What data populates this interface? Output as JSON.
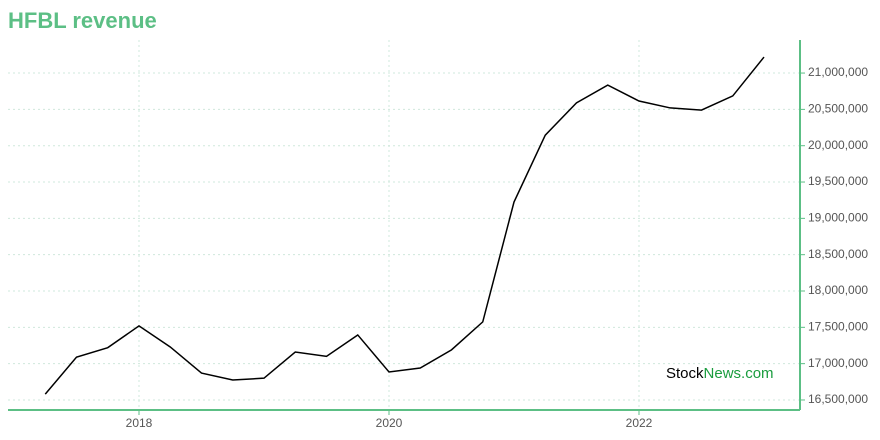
{
  "chart_data": {
    "type": "line",
    "title": "HFBL revenue",
    "x": [
      2017.25,
      2017.5,
      2017.75,
      2018.0,
      2018.25,
      2018.5,
      2018.75,
      2019.0,
      2019.25,
      2019.5,
      2019.75,
      2020.0,
      2020.25,
      2020.5,
      2020.75,
      2021.0,
      2021.25,
      2021.5,
      2021.75,
      2022.0,
      2022.25,
      2022.5,
      2022.75,
      2023.0
    ],
    "series": [
      {
        "name": "Revenue",
        "color": "#000000",
        "values": [
          16580000,
          17090000,
          17220000,
          17520000,
          17230000,
          16870000,
          16775000,
          16800000,
          17160000,
          17100000,
          17395000,
          16885000,
          16940000,
          17190000,
          17575000,
          19225000,
          20145000,
          20590000,
          20835000,
          20615000,
          20520000,
          20490000,
          20685000,
          21220000
        ]
      }
    ],
    "xlim": [
      2016.952,
      2023.288
    ],
    "xticks": [
      2018,
      2020,
      2022
    ],
    "ylim": [
      16362000,
      21455000
    ],
    "yticks": [
      {
        "value": 16500000,
        "label": "16,500,000"
      },
      {
        "value": 17000000,
        "label": "17,000,000"
      },
      {
        "value": 17500000,
        "label": "17,500,000"
      },
      {
        "value": 18000000,
        "label": "18,000,000"
      },
      {
        "value": 18500000,
        "label": "18,500,000"
      },
      {
        "value": 19000000,
        "label": "19,000,000"
      },
      {
        "value": 19500000,
        "label": "19,500,000"
      },
      {
        "value": 20000000,
        "label": "20,000,000"
      },
      {
        "value": 20500000,
        "label": "20,500,000"
      },
      {
        "value": 21000000,
        "label": "21,000,000"
      }
    ],
    "grid": true,
    "axis_color": "#5cbf85",
    "watermark": [
      "Stock",
      "News.com"
    ]
  }
}
